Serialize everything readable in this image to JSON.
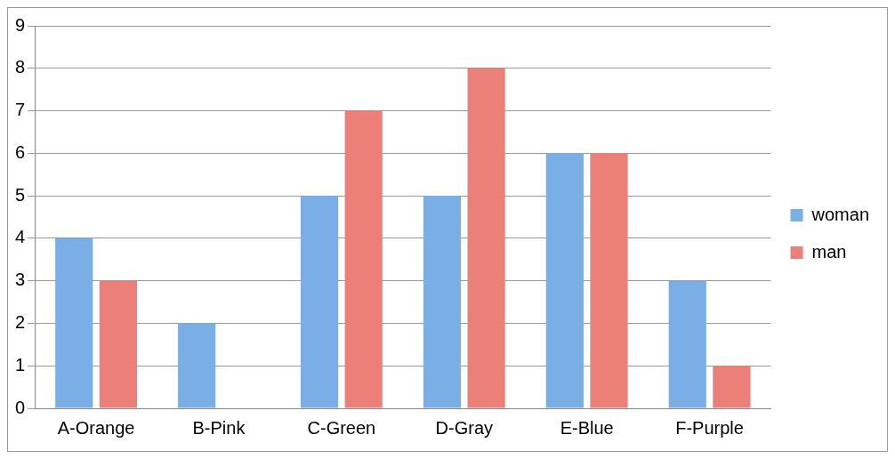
{
  "chart_data": {
    "type": "bar",
    "categories": [
      "A-Orange",
      "B-Pink",
      "C-Green",
      "D-Gray",
      "E-Blue",
      "F-Purple"
    ],
    "series": [
      {
        "name": "woman",
        "color": "#7aaee6",
        "values": [
          4,
          2,
          5,
          5,
          6,
          3
        ]
      },
      {
        "name": "man",
        "color": "#ec8078",
        "values": [
          3,
          0,
          7,
          8,
          6,
          1
        ]
      }
    ],
    "ylim": [
      0,
      9
    ],
    "yticks": [
      0,
      1,
      2,
      3,
      4,
      5,
      6,
      7,
      8,
      9
    ],
    "grid": "y",
    "legend": "right"
  }
}
